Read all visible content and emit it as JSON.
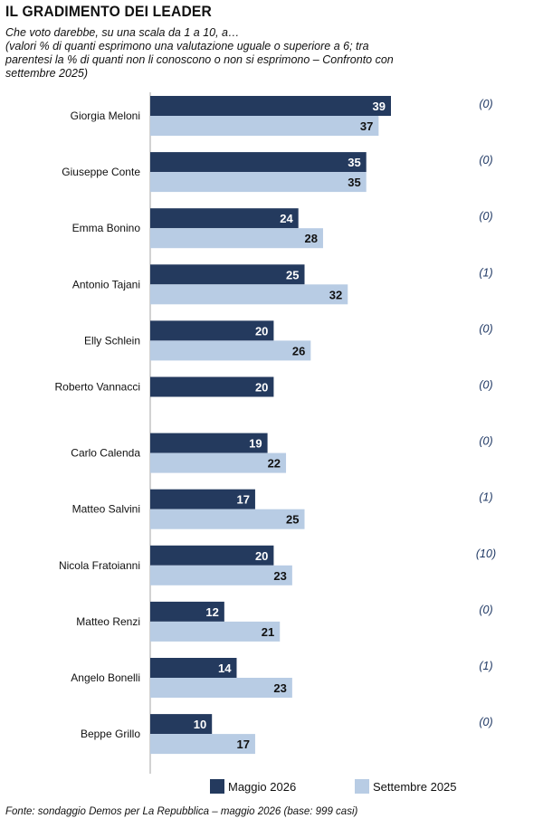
{
  "title": "IL GRADIMENTO DEI LEADER",
  "subtitle_lines": [
    "Che voto darebbe, su una scala da 1 a 10, a…",
    "(valori % di quanti esprimono una valutazione uguale o superiore a 6; tra",
    "parentesi la % di quanti non li conoscono o non si esprimono – Confronto con",
    "settembre 2025)"
  ],
  "legend": {
    "series1": "Maggio 2026",
    "series2": "Settembre 2025"
  },
  "source": "Fonte: sondaggio Demos per La Repubblica – maggio 2026 (base: 999 casi)",
  "colors": {
    "series1": "#243a5e",
    "series2": "#b8cce4",
    "axis": "#a6a6a6",
    "paren": "#1f3864"
  },
  "chart_data": {
    "type": "bar",
    "orientation": "horizontal",
    "categories": [
      "Giorgia Meloni",
      "Giuseppe Conte",
      "Emma Bonino",
      "Antonio Tajani",
      "Elly Schlein",
      "Roberto Vannacci",
      "Carlo Calenda",
      "Matteo Salvini",
      "Nicola Fratoianni",
      "Matteo Renzi",
      "Angelo Bonelli",
      "Beppe Grillo"
    ],
    "series": [
      {
        "name": "Maggio 2026",
        "values": [
          39,
          35,
          24,
          25,
          20,
          20,
          19,
          17,
          20,
          12,
          14,
          10
        ]
      },
      {
        "name": "Settembre 2025",
        "values": [
          37,
          35,
          28,
          32,
          26,
          null,
          22,
          25,
          23,
          21,
          23,
          17
        ]
      }
    ],
    "parenthetical": [
      "(0)",
      "(0)",
      "(0)",
      "(1)",
      "(0)",
      "(0)",
      "(0)",
      "(1)",
      "(10)",
      "(0)",
      "(1)",
      "(0)"
    ],
    "xlim": [
      0,
      39
    ],
    "data_labels": true,
    "grid": false,
    "legend_position": "bottom"
  }
}
